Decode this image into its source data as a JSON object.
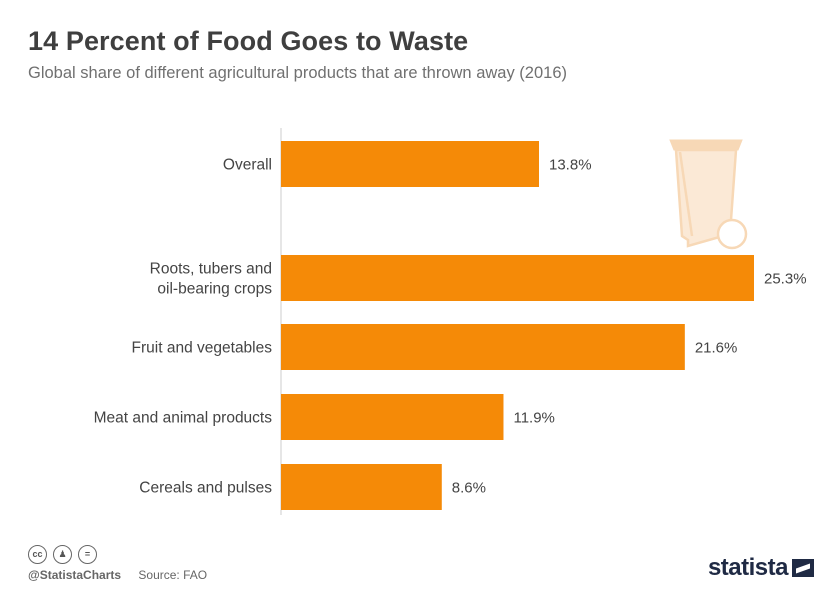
{
  "title": "14 Percent of Food Goes to Waste",
  "subtitle": "Global share of different agricultural products that are thrown away (2016)",
  "footer": {
    "handle": "@StatistaCharts",
    "source": "Source: FAO",
    "brand": "statista"
  },
  "license_icons": [
    "cc-icon",
    "attribution-icon",
    "no-derivatives-icon"
  ],
  "colors": {
    "bar": "#f58a07",
    "bin": "#f7d8b6",
    "axis": "#cccccc"
  },
  "chart_data": {
    "type": "bar",
    "orientation": "horizontal",
    "categories": [
      [
        "Overall"
      ],
      [
        "Roots, tubers and",
        "oil-bearing crops"
      ],
      [
        "Fruit and vegetables"
      ],
      [
        "Meat and animal products"
      ],
      [
        "Cereals and pulses"
      ]
    ],
    "values": [
      13.8,
      25.3,
      21.6,
      11.9,
      8.6
    ],
    "value_labels": [
      "13.8%",
      "25.3%",
      "21.6%",
      "11.9%",
      "8.6%"
    ],
    "unit": "%",
    "xlim": [
      0,
      25.3
    ],
    "grid": false,
    "legend": "none"
  }
}
